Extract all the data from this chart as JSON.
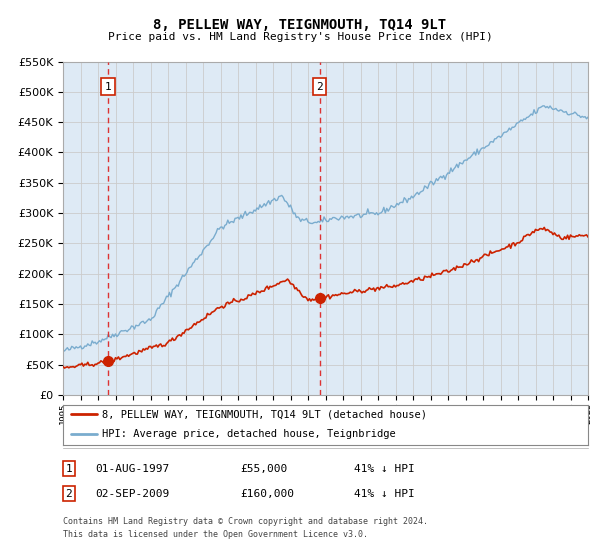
{
  "title": "8, PELLEW WAY, TEIGNMOUTH, TQ14 9LT",
  "subtitle": "Price paid vs. HM Land Registry's House Price Index (HPI)",
  "legend_line1": "8, PELLEW WAY, TEIGNMOUTH, TQ14 9LT (detached house)",
  "legend_line2": "HPI: Average price, detached house, Teignbridge",
  "sale1_date": "01-AUG-1997",
  "sale1_price": "£55,000",
  "sale1_hpi": "41% ↓ HPI",
  "sale1_year": 1997.583,
  "sale1_value": 55000,
  "sale2_date": "02-SEP-2009",
  "sale2_price": "£160,000",
  "sale2_hpi": "41% ↓ HPI",
  "sale2_year": 2009.667,
  "sale2_value": 160000,
  "red_line_color": "#cc2200",
  "blue_line_color": "#7aacce",
  "vline_color": "#dd3333",
  "grid_color": "#cccccc",
  "bg_color": "#deeaf5",
  "ylim": [
    0,
    550000
  ],
  "xlim": [
    1995,
    2025
  ],
  "footnote1": "Contains HM Land Registry data © Crown copyright and database right 2024.",
  "footnote2": "This data is licensed under the Open Government Licence v3.0."
}
